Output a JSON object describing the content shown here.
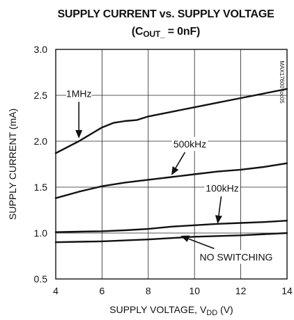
{
  "chart_data": {
    "type": "line",
    "title": "SUPPLY CURRENT vs. SUPPLY VOLTAGE",
    "subtitle_prefix": "(C",
    "subtitle_sub": "OUT_",
    "subtitle_suffix": " = 0nF)",
    "xlabel_prefix": "SUPPLY VOLTAGE, V",
    "xlabel_sub": "DD",
    "xlabel_suffix": " (V)",
    "ylabel": "SUPPLY CURRENT (mA)",
    "side_label": "MAX17600 toc05",
    "xlim": [
      4,
      14
    ],
    "ylim": [
      0.5,
      3.0
    ],
    "x_ticks": [
      4,
      6,
      8,
      10,
      12,
      14
    ],
    "x_tick_labels": [
      "4",
      "6",
      "8",
      "10",
      "12",
      "14"
    ],
    "y_ticks": [
      0.5,
      1.0,
      1.5,
      2.0,
      2.5,
      3.0
    ],
    "y_tick_labels": [
      "0.5",
      "1.0",
      "1.5",
      "2.0",
      "2.5",
      "3.0"
    ],
    "grid": true,
    "series": [
      {
        "name": "1MHz",
        "x": [
          4,
          5,
          6,
          6.5,
          7,
          7.5,
          8,
          9,
          10,
          11,
          12,
          13,
          14
        ],
        "y": [
          1.87,
          2.0,
          2.15,
          2.2,
          2.22,
          2.23,
          2.27,
          2.32,
          2.37,
          2.42,
          2.47,
          2.52,
          2.57
        ]
      },
      {
        "name": "500kHz",
        "x": [
          4,
          5,
          6,
          7,
          8,
          9,
          10,
          11,
          12,
          13,
          14
        ],
        "y": [
          1.38,
          1.45,
          1.51,
          1.55,
          1.58,
          1.61,
          1.64,
          1.67,
          1.69,
          1.72,
          1.76
        ]
      },
      {
        "name": "100kHz",
        "x": [
          4,
          5,
          6,
          7,
          8,
          9,
          10,
          11,
          12,
          13,
          14
        ],
        "y": [
          1.01,
          1.015,
          1.02,
          1.03,
          1.045,
          1.07,
          1.085,
          1.1,
          1.11,
          1.12,
          1.135
        ]
      },
      {
        "name": "NO SWITCHING",
        "x": [
          4,
          6,
          8,
          10,
          12,
          14
        ],
        "y": [
          0.9,
          0.91,
          0.93,
          0.96,
          0.975,
          1.0
        ]
      }
    ],
    "annotations": [
      {
        "text": "1MHz",
        "label_x": 5.0,
        "label_y": 2.52,
        "arrow_to": [
          5.0,
          2.03
        ]
      },
      {
        "text": "500kHz",
        "label_x": 9.8,
        "label_y": 1.97,
        "arrow_to": [
          9.0,
          1.63
        ]
      },
      {
        "text": "100kHz",
        "label_x": 11.2,
        "label_y": 1.49,
        "arrow_to": [
          11.0,
          1.1
        ]
      },
      {
        "text": "NO SWITCHING",
        "label_x": 11.8,
        "label_y": 0.74,
        "arrow_to": [
          9.4,
          0.97
        ]
      }
    ],
    "line_color": "#111111",
    "grid_color": "#222222"
  }
}
